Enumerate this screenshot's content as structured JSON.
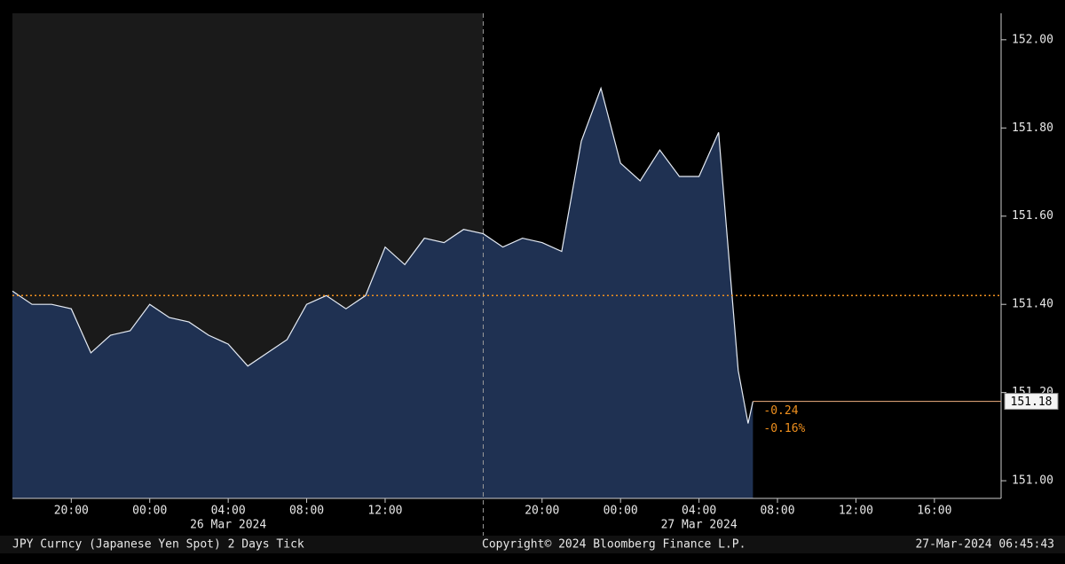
{
  "chart_data": {
    "type": "area",
    "x": [
      "2024-03-25T17:00",
      "2024-03-25T18:00",
      "2024-03-25T19:00",
      "2024-03-25T20:00",
      "2024-03-25T21:00",
      "2024-03-25T22:00",
      "2024-03-25T23:00",
      "2024-03-26T00:00",
      "2024-03-26T01:00",
      "2024-03-26T02:00",
      "2024-03-26T03:00",
      "2024-03-26T04:00",
      "2024-03-26T05:00",
      "2024-03-26T06:00",
      "2024-03-26T07:00",
      "2024-03-26T08:00",
      "2024-03-26T09:00",
      "2024-03-26T10:00",
      "2024-03-26T11:00",
      "2024-03-26T12:00",
      "2024-03-26T13:00",
      "2024-03-26T14:00",
      "2024-03-26T15:00",
      "2024-03-26T16:00",
      "2024-03-26T17:00",
      "2024-03-26T18:00",
      "2024-03-26T19:00",
      "2024-03-26T20:00",
      "2024-03-26T21:00",
      "2024-03-26T22:00",
      "2024-03-26T23:00",
      "2024-03-27T00:00",
      "2024-03-27T01:00",
      "2024-03-27T02:00",
      "2024-03-27T03:00",
      "2024-03-27T04:00",
      "2024-03-27T05:00",
      "2024-03-27T06:00",
      "2024-03-27T06:30",
      "2024-03-27T06:45"
    ],
    "values": [
      151.43,
      151.4,
      151.4,
      151.39,
      151.29,
      151.33,
      151.34,
      151.4,
      151.37,
      151.36,
      151.33,
      151.31,
      151.26,
      151.29,
      151.32,
      151.4,
      151.42,
      151.39,
      151.42,
      151.53,
      151.49,
      151.55,
      151.54,
      151.57,
      151.56,
      151.53,
      151.55,
      151.54,
      151.52,
      151.77,
      151.89,
      151.72,
      151.68,
      151.75,
      151.69,
      151.69,
      151.79,
      151.25,
      151.13,
      151.18
    ],
    "color": "#e6ecf5",
    "fill": "#1f3152",
    "xlim": [
      "2024-03-25T17:00",
      "2024-03-27T19:24"
    ],
    "xticks": [
      {
        "value": "2024-03-25T20:00",
        "label": "20:00"
      },
      {
        "value": "2024-03-26T00:00",
        "label": "00:00"
      },
      {
        "value": "2024-03-26T04:00",
        "label": "04:00"
      },
      {
        "value": "2024-03-26T08:00",
        "label": "08:00"
      },
      {
        "value": "2024-03-26T12:00",
        "label": "12:00"
      },
      {
        "value": "2024-03-26T20:00",
        "label": "20:00"
      },
      {
        "value": "2024-03-27T00:00",
        "label": "00:00"
      },
      {
        "value": "2024-03-27T04:00",
        "label": "04:00"
      },
      {
        "value": "2024-03-27T08:00",
        "label": "08:00"
      },
      {
        "value": "2024-03-27T12:00",
        "label": "12:00"
      },
      {
        "value": "2024-03-27T16:00",
        "label": "16:00"
      }
    ],
    "date_labels": [
      {
        "value": "2024-03-26T04:00",
        "label": "26 Mar 2024"
      },
      {
        "value": "2024-03-27T04:00",
        "label": "27 Mar 2024"
      }
    ],
    "session_break": "2024-03-26T17:00",
    "ylim": [
      150.96,
      152.06
    ],
    "yticks": [
      {
        "value": 151.0,
        "label": "151.00"
      },
      {
        "value": 151.2,
        "label": "151.20"
      },
      {
        "value": 151.4,
        "label": "151.40"
      },
      {
        "value": 151.6,
        "label": "151.60"
      },
      {
        "value": 151.8,
        "label": "151.80"
      },
      {
        "value": 152.0,
        "label": "152.00"
      }
    ],
    "reference_value": 151.42,
    "last_price": 151.18,
    "change": -0.24,
    "change_pct": {
      "value": -0.16,
      "label": "-0.16%"
    },
    "footer_left": "JPY Curncy (Japanese Yen Spot) 2 Days  Tick",
    "footer_center": "Copyright© 2024 Bloomberg Finance L.P.",
    "footer_right": "27-Mar-2024 06:45:43"
  }
}
